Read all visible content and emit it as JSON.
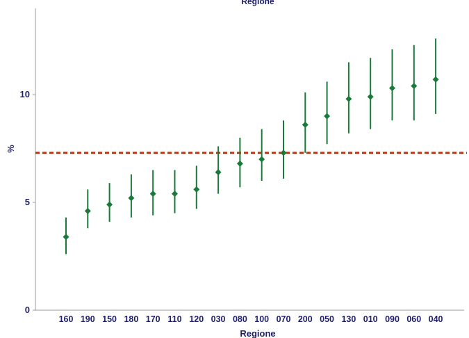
{
  "chart_data": {
    "type": "scatter",
    "title": "Regione",
    "xlabel": "Regione",
    "ylabel": "%",
    "ylim": [
      0,
      14
    ],
    "yticks": [
      "0",
      "5",
      "10"
    ],
    "categories": [
      "160",
      "190",
      "150",
      "180",
      "170",
      "110",
      "120",
      "030",
      "080",
      "100",
      "070",
      "200",
      "050",
      "130",
      "010",
      "090",
      "060",
      "040"
    ],
    "values": [
      3.4,
      4.6,
      4.9,
      5.2,
      5.4,
      5.4,
      5.6,
      6.4,
      6.8,
      7.0,
      7.3,
      8.6,
      9.0,
      9.8,
      9.9,
      10.3,
      10.4,
      10.7
    ],
    "lower": [
      2.6,
      3.8,
      4.1,
      4.3,
      4.4,
      4.5,
      4.7,
      5.4,
      5.7,
      6.0,
      6.1,
      7.3,
      7.7,
      8.2,
      8.4,
      8.8,
      8.8,
      9.1
    ],
    "upper": [
      4.3,
      5.6,
      5.9,
      6.3,
      6.5,
      6.5,
      6.7,
      7.6,
      8.0,
      8.4,
      8.8,
      10.1,
      10.6,
      11.5,
      11.7,
      12.1,
      12.3,
      12.6
    ],
    "reference_line": 7.3,
    "colors": {
      "marker": "#1a7a3a",
      "reference": "#b03a1a",
      "axis": "#999999",
      "text": "#1f1f6e"
    },
    "grid": false
  }
}
